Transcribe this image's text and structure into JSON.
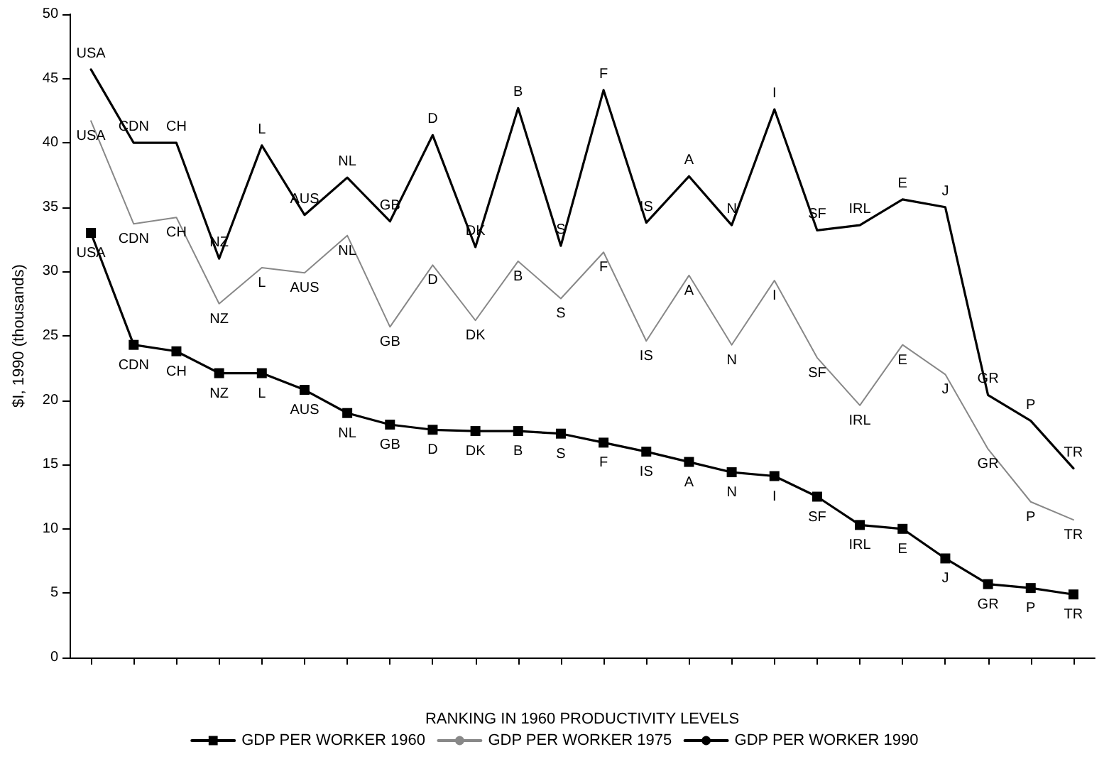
{
  "chart_data": {
    "type": "line",
    "xlabel": "RANKING IN 1960 PRODUCTIVITY LEVELS",
    "ylabel": "$I, 1990 (thousands)",
    "categories": [
      null,
      null,
      null,
      null,
      null,
      null,
      null,
      null,
      null,
      null,
      null,
      null,
      null,
      null,
      null,
      null,
      null,
      null,
      null,
      null,
      null,
      null,
      null,
      null
    ],
    "series": [
      {
        "name": "GDP PER WORKER 1960",
        "color": "#000000",
        "marker": "square",
        "values": [
          33.0,
          24.3,
          23.8,
          22.1,
          22.1,
          20.8,
          19.0,
          18.1,
          17.7,
          17.6,
          17.6,
          17.4,
          16.7,
          16.0,
          15.2,
          14.4,
          14.1,
          12.5,
          10.3,
          10.0,
          7.7,
          5.7,
          5.4,
          4.9
        ],
        "value_labels": [
          "USA",
          "CDN",
          "CH",
          "NZ",
          "L",
          "AUS",
          "NL",
          "GB",
          "D",
          "DK",
          "B",
          "S",
          "F",
          "IS",
          "A",
          "N",
          "I",
          "SF",
          "IRL",
          "E",
          "J",
          "GR",
          "P",
          "TR"
        ]
      },
      {
        "name": "GDP PER WORKER 1975",
        "color": "#888888",
        "marker": "none",
        "values": [
          41.7,
          33.7,
          34.2,
          27.5,
          30.3,
          29.9,
          32.8,
          25.7,
          30.5,
          26.2,
          30.8,
          27.9,
          31.5,
          24.6,
          29.7,
          24.3,
          29.3,
          23.3,
          19.6,
          24.3,
          22.0,
          16.2,
          12.1,
          10.7
        ],
        "value_labels": [
          "USA",
          "CDN",
          "CH",
          "NZ",
          "L",
          "AUS",
          "NL",
          "GB",
          "D",
          "DK",
          "B",
          "S",
          "F",
          "IS",
          "A",
          "N",
          "I",
          "SF",
          "IRL",
          "E",
          "J",
          "GR",
          "P",
          "TR"
        ]
      },
      {
        "name": "GDP PER WORKER 1990",
        "color": "#000000",
        "marker": "none",
        "values": [
          45.7,
          40.0,
          40.0,
          31.0,
          39.8,
          34.4,
          37.3,
          33.9,
          40.6,
          31.9,
          42.7,
          32.0,
          44.1,
          33.8,
          37.4,
          33.6,
          42.6,
          33.2,
          33.6,
          35.6,
          35.0,
          20.4,
          18.4,
          14.7
        ],
        "value_labels": [
          "USA",
          "CDN",
          "CH",
          "NZ",
          "L",
          "AUS",
          "NL",
          "GB",
          "D",
          "DK",
          "B",
          "S",
          "F",
          "IS",
          "A",
          "N",
          "I",
          "SF",
          "IRL",
          "E",
          "J",
          "GR",
          "P",
          "TR"
        ]
      }
    ],
    "ylim": [
      0,
      50
    ],
    "yticks": [
      0,
      5,
      10,
      15,
      20,
      25,
      30,
      35,
      40,
      45,
      50
    ],
    "grid": false,
    "legend": "bottom",
    "tick_labels": "y",
    "line_style": "solid"
  }
}
